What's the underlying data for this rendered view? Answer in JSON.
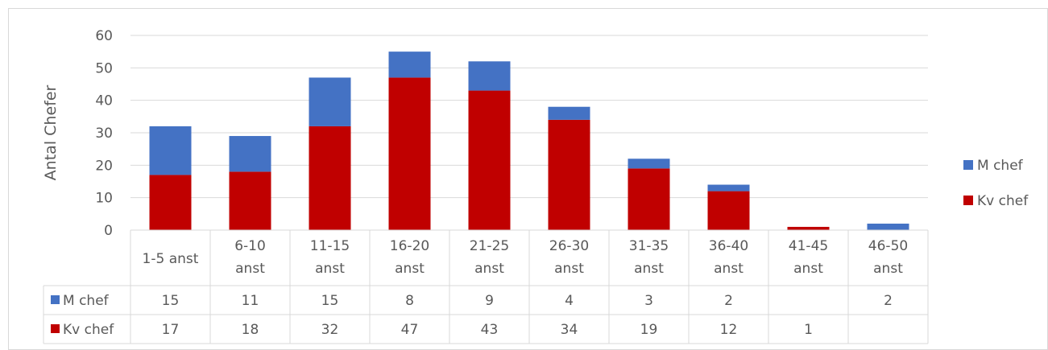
{
  "chart_data": {
    "type": "bar",
    "stacked": true,
    "ylabel": "Antal Chefer",
    "xlabel": "",
    "ylim": [
      0,
      60
    ],
    "yticks": [
      0,
      10,
      20,
      30,
      40,
      50,
      60
    ],
    "grid": true,
    "legend_position": "right",
    "categories": [
      [
        "1-5 anst"
      ],
      [
        "6-10",
        "anst"
      ],
      [
        "11-15",
        "anst"
      ],
      [
        "16-20",
        "anst"
      ],
      [
        "21-25",
        "anst"
      ],
      [
        "26-30",
        "anst"
      ],
      [
        "31-35",
        "anst"
      ],
      [
        "36-40",
        "anst"
      ],
      [
        "41-45",
        "anst"
      ],
      [
        "46-50",
        "anst"
      ]
    ],
    "series": [
      {
        "name": "Kv chef",
        "color": "#C00000",
        "values": [
          17,
          18,
          32,
          47,
          43,
          34,
          19,
          12,
          1,
          null
        ]
      },
      {
        "name": "M chef",
        "color": "#4472C4",
        "values": [
          15,
          11,
          15,
          8,
          9,
          4,
          3,
          2,
          null,
          2
        ]
      }
    ],
    "legend": [
      "M chef",
      "Kv chef"
    ],
    "data_table": true
  }
}
